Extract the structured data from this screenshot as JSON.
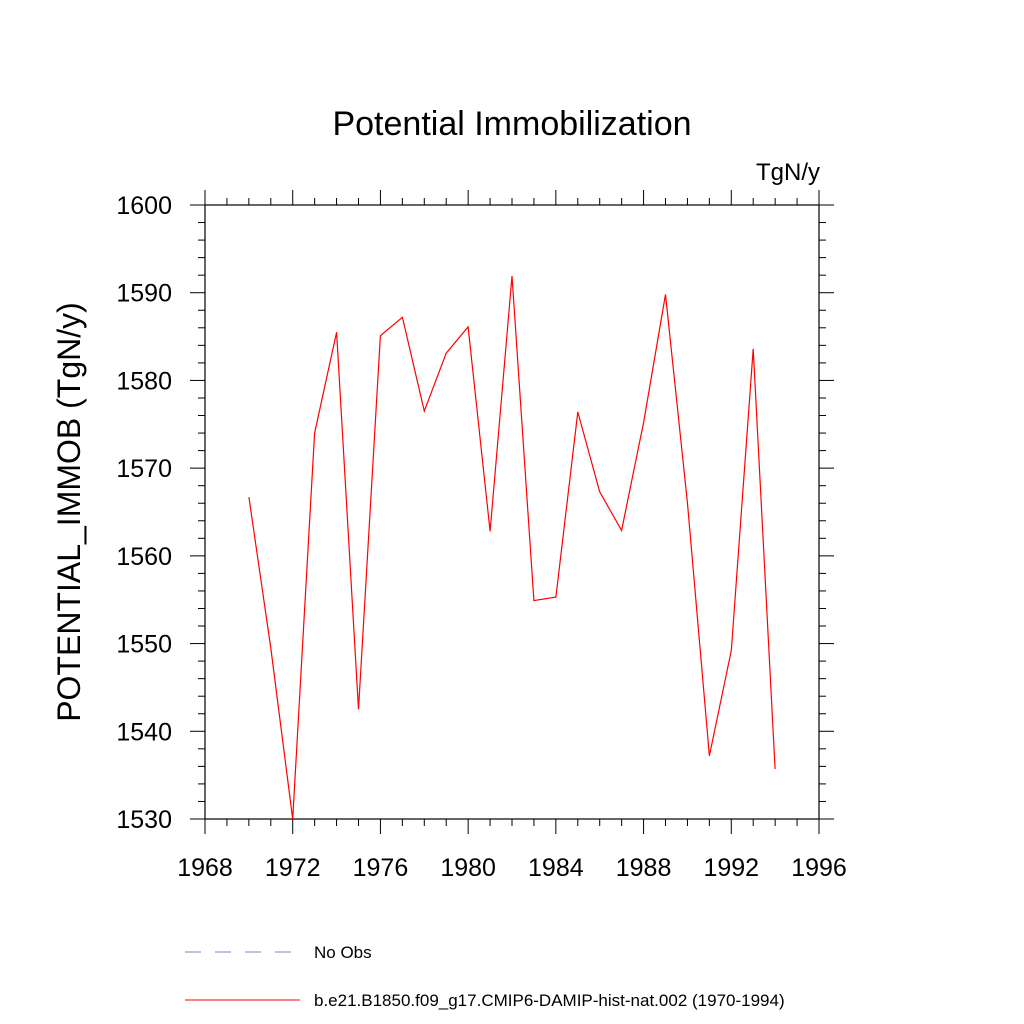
{
  "chart_data": {
    "type": "line",
    "title": "Potential Immobilization",
    "units_label": "TgN/y",
    "xlabel": "",
    "ylabel": "POTENTIAL_IMMOB  (TgN/y)",
    "xlim": [
      1968,
      1996
    ],
    "ylim": [
      1530,
      1600
    ],
    "x_ticks": [
      1968,
      1972,
      1976,
      1980,
      1984,
      1988,
      1992,
      1996
    ],
    "y_ticks": [
      1530,
      1540,
      1550,
      1560,
      1570,
      1580,
      1590,
      1600
    ],
    "grid": false,
    "legend_position": "bottom",
    "legend": [
      {
        "label": "No Obs",
        "color": "#8080c0",
        "style": "dashed"
      },
      {
        "label": "b.e21.B1850.f09_g17.CMIP6-DAMIP-hist-nat.002 (1970-1994)",
        "color": "#ff0000",
        "style": "solid"
      }
    ],
    "series": [
      {
        "name": "b.e21.B1850.f09_g17.CMIP6-DAMIP-hist-nat.002 (1970-1994)",
        "color": "#ff0000",
        "x": [
          1970,
          1971,
          1972,
          1973,
          1974,
          1975,
          1976,
          1977,
          1978,
          1979,
          1980,
          1981,
          1982,
          1983,
          1984,
          1985,
          1986,
          1987,
          1988,
          1989,
          1990,
          1991,
          1992,
          1993,
          1994
        ],
        "y": [
          1566.7,
          1549.5,
          1530.0,
          1574.0,
          1585.5,
          1542.5,
          1585.1,
          1587.2,
          1576.5,
          1583.1,
          1586.1,
          1562.8,
          1591.9,
          1554.9,
          1555.3,
          1576.4,
          1567.3,
          1562.9,
          1575.2,
          1589.8,
          1566.1,
          1537.2,
          1549.2,
          1583.6,
          1535.7
        ]
      }
    ]
  }
}
